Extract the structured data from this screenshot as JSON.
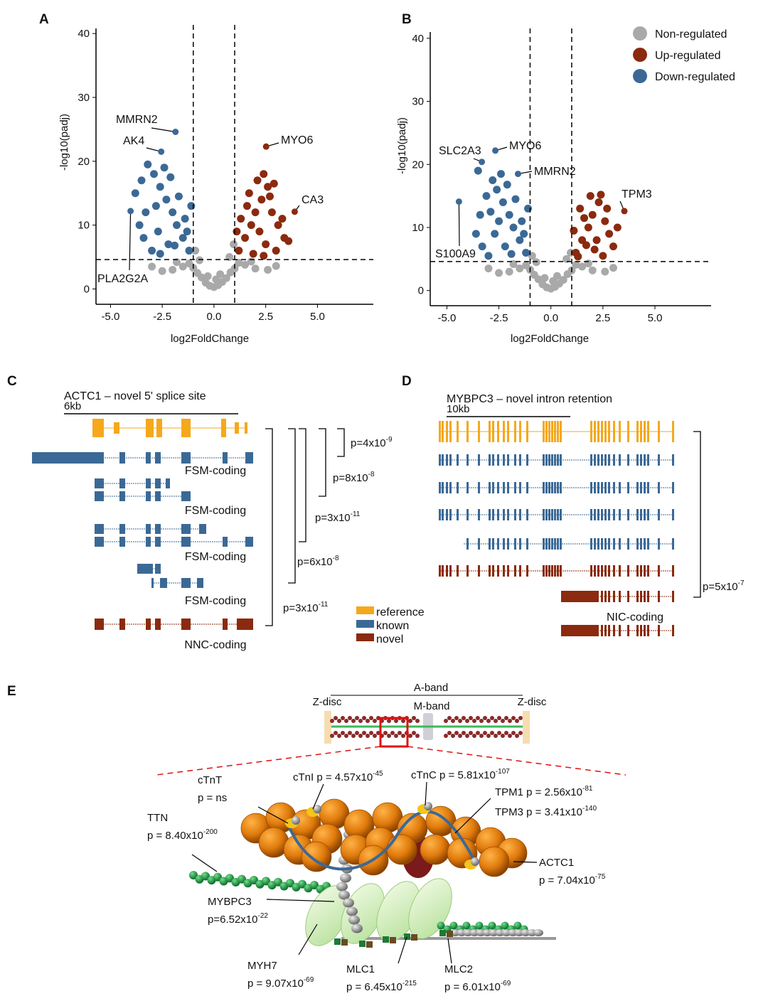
{
  "panel_labels": [
    "A",
    "B",
    "C",
    "D",
    "E"
  ],
  "chart_data": [
    {
      "type": "scatter",
      "xlabel": "log2FoldChange",
      "ylabel": "-log10(padj)",
      "xlim": [
        -5.7,
        7.7
      ],
      "ylim": [
        -2.4,
        40.8
      ],
      "xticks": [
        {
          "value": -5,
          "label": "-5.0"
        },
        {
          "value": -2.5,
          "label": "-2.5"
        },
        {
          "value": 0,
          "label": "0.0"
        },
        {
          "value": 2.5,
          "label": "2.5"
        },
        {
          "value": 5,
          "label": "5.0"
        }
      ],
      "yticks": [
        0,
        10,
        20,
        30,
        40
      ],
      "thresholds": {
        "x": [
          -1,
          1
        ],
        "y": 4.6
      },
      "series": [
        {
          "name": "Non-regulated",
          "color": "#a9a9a9",
          "x": [
            0,
            -0.2,
            0.2,
            -0.4,
            0.4,
            -0.6,
            0.6,
            -0.8,
            0.8,
            -1,
            1,
            -1.2,
            1.2,
            -1.5,
            1.5,
            -2,
            2,
            -2.5,
            2.6,
            -0.9,
            0.95,
            -0.7,
            0.75,
            -3,
            3,
            0.1,
            -0.3,
            0.3,
            -1.8,
            1.8
          ],
          "y": [
            0.3,
            0.5,
            0.6,
            1,
            1.1,
            1.8,
            1.7,
            2.5,
            2.6,
            3.3,
            3.2,
            4,
            4.1,
            3.5,
            3.8,
            3,
            3.2,
            2.8,
            3,
            6,
            7,
            4.5,
            5,
            3.5,
            3.6,
            1.5,
            2,
            2.3,
            4.2,
            4.3
          ]
        },
        {
          "name": "Up-regulated",
          "color": "#8b2a0e",
          "x": [
            1.2,
            1.5,
            1.8,
            2,
            2.3,
            2.6,
            2.4,
            2.1,
            1.6,
            1.3,
            2.8,
            3.1,
            3.4,
            3,
            2.5,
            1.9,
            2.2,
            2.7,
            3.3,
            1.1,
            2.9,
            1.7,
            3.6,
            2.4
          ],
          "y": [
            6,
            8,
            10,
            12,
            14,
            16,
            18,
            17,
            13,
            11,
            12,
            10,
            8,
            6,
            7,
            5.5,
            9,
            14.5,
            11,
            9,
            16.5,
            15,
            7.5,
            5.2
          ]
        },
        {
          "name": "Down-regulated",
          "color": "#3b6996",
          "x": [
            -1.2,
            -1.5,
            -1.8,
            -2,
            -2.3,
            -2.6,
            -2.9,
            -3.2,
            -3.5,
            -3.8,
            -3.3,
            -2.7,
            -2.2,
            -3,
            -1.4,
            -1.1,
            -2.4,
            -3.6,
            -2.8,
            -1.7,
            -2.1,
            -1.3,
            -2.6,
            -3.4,
            -1.9
          ],
          "y": [
            6,
            8,
            10,
            12,
            14,
            16,
            18,
            19.5,
            17,
            15,
            12,
            9,
            7,
            6,
            11,
            13,
            19,
            10,
            13,
            14.5,
            17.5,
            9,
            5.5,
            8,
            6.8
          ]
        }
      ],
      "annotations": [
        {
          "text": "MMRN2",
          "x": -1.86,
          "y": 24.6,
          "color": "#3b6996"
        },
        {
          "text": "AK4",
          "x": -2.55,
          "y": 21.5,
          "color": "#3b6996"
        },
        {
          "text": "MYO6",
          "x": 2.52,
          "y": 22.3,
          "color": "#8b2a0e"
        },
        {
          "text": "CA3",
          "x": 3.9,
          "y": 12.1,
          "color": "#8b2a0e"
        },
        {
          "text": "PLA2G2A",
          "x": -4.03,
          "y": 12.2,
          "color": "#3b6996"
        }
      ]
    },
    {
      "type": "scatter",
      "xlabel": "log2FoldChange",
      "ylabel": "-log10(padj)",
      "xlim": [
        -5.8,
        7.7
      ],
      "ylim": [
        -2.4,
        41
      ],
      "xticks": [
        {
          "value": -5,
          "label": "-5.0"
        },
        {
          "value": -2.5,
          "label": "-2.5"
        },
        {
          "value": 0,
          "label": "0.0"
        },
        {
          "value": 2.5,
          "label": "2.5"
        },
        {
          "value": 5,
          "label": "5.0"
        }
      ],
      "yticks": [
        0,
        10,
        20,
        30,
        40
      ],
      "thresholds": {
        "x": [
          -1,
          1
        ],
        "y": 4.6
      },
      "legend": "upper right",
      "series": [
        {
          "name": "Non-regulated",
          "color": "#a9a9a9",
          "x": [
            0,
            -0.2,
            0.2,
            -0.4,
            0.4,
            -0.6,
            0.6,
            -0.8,
            0.8,
            -1,
            1,
            -1.2,
            1.2,
            -1.5,
            1.5,
            -2,
            2,
            -2.5,
            2.6,
            -0.9,
            0.95,
            -0.7,
            0.75,
            -3,
            3,
            0.1,
            -0.3,
            0.3,
            -1.8,
            1.8
          ],
          "y": [
            0.3,
            0.5,
            0.6,
            1,
            1.1,
            1.8,
            1.7,
            2.5,
            2.6,
            3.3,
            3.2,
            4,
            4.1,
            3.5,
            3.8,
            3,
            3.2,
            2.8,
            3,
            5.5,
            6,
            4.5,
            5,
            3.5,
            3.6,
            1.5,
            2,
            2.3,
            4.2,
            4.3
          ]
        },
        {
          "name": "Up-regulated",
          "color": "#8b2a0e",
          "x": [
            1.2,
            1.5,
            1.8,
            2,
            2.3,
            1.9,
            1.4,
            2.6,
            2.8,
            3,
            2.5,
            1.6,
            2.2,
            1.1,
            2.7,
            3.2,
            1.3,
            2.1,
            2.4,
            1.7
          ],
          "y": [
            6,
            8,
            10,
            12,
            14,
            15,
            13,
            11,
            9,
            7,
            5.5,
            11.5,
            8,
            9.5,
            13,
            10,
            5.4,
            6.5,
            15.2,
            7.2
          ]
        },
        {
          "name": "Down-regulated",
          "color": "#3b6996",
          "x": [
            -1.2,
            -1.5,
            -1.8,
            -2,
            -2.3,
            -2.6,
            -2.8,
            -3.1,
            -3.4,
            -3.6,
            -3.3,
            -2.7,
            -2.2,
            -3,
            -1.4,
            -1.1,
            -2.4,
            -1.7,
            -2.1,
            -1.3,
            -3.5,
            -2.9,
            -1.9,
            -2.5
          ],
          "y": [
            6,
            8,
            10,
            12,
            14,
            16,
            17.5,
            15,
            12,
            9,
            7,
            9,
            7,
            5.5,
            11,
            13,
            18.5,
            14.5,
            16.8,
            9,
            19,
            12.5,
            5.8,
            11
          ]
        }
      ],
      "annotations": [
        {
          "text": "SLC2A3",
          "x": -3.32,
          "y": 20.4,
          "color": "#3b6996"
        },
        {
          "text": "MYO6",
          "x": -2.67,
          "y": 22.2,
          "color": "#3b6996"
        },
        {
          "text": "MMRN2",
          "x": -1.58,
          "y": 18.5,
          "color": "#3b6996"
        },
        {
          "text": "TPM3",
          "x": 3.53,
          "y": 12.6,
          "color": "#8b2a0e"
        },
        {
          "text": "S100A9",
          "x": -4.42,
          "y": 14.1,
          "color": "#3b6996"
        }
      ]
    }
  ],
  "panel_c": {
    "title": "ACTC1 – novel 5' splice site",
    "scale": "6kb",
    "isoform_labels": [
      "FSM-coding",
      "FSM-coding",
      "FSM-coding",
      "FSM-coding",
      "NNC-coding"
    ],
    "pvalues": [
      {
        "text": "p=4x10",
        "sup": "-9"
      },
      {
        "text": "p=8x10",
        "sup": "-8"
      },
      {
        "text": "p=3x10",
        "sup": "-11"
      },
      {
        "text": "p=6x10",
        "sup": "-8"
      },
      {
        "text": "p=3x10",
        "sup": "-11"
      }
    ],
    "legend": [
      {
        "name": "reference",
        "color": "#f5a81c"
      },
      {
        "name": "known",
        "color": "#3b6996"
      },
      {
        "name": "novel",
        "color": "#8b2a0e"
      }
    ]
  },
  "panel_d": {
    "title": "MYBPC3 – novel intron retention",
    "scale": "10kb",
    "isoform_labels": [
      "NIC-coding"
    ],
    "pvalues": [
      {
        "text": "p=5x10",
        "sup": "-7"
      }
    ]
  },
  "panel_e": {
    "sarcomere": [
      "A-band",
      "Z-disc",
      "M-band",
      "Z-disc"
    ],
    "labels": [
      {
        "line1": "cTnT",
        "line2": "p = ns"
      },
      {
        "line1": "cTnI p = 4.57x10",
        "sup": "-45"
      },
      {
        "line1": "cTnC p = 5.81x10",
        "sup": "-107"
      },
      {
        "line1": "TPM1 p = 2.56x10",
        "sup": "-81"
      },
      {
        "line1": "TPM3 p = 3.41x10",
        "sup": "-140"
      },
      {
        "line1": "TTN",
        "line2": "p = 8.40x10",
        "sup": "-200"
      },
      {
        "line1": "ACTC1",
        "line2": "p = 7.04x10",
        "sup": "-75"
      },
      {
        "line1": "MYBPC3",
        "line2": "p=6.52x10",
        "sup": "-22"
      },
      {
        "line1": "MYH7",
        "line2": "p = 9.07x10",
        "sup": "-69"
      },
      {
        "line1": "MLC1",
        "line2": "p = 6.45x10",
        "sup": "-215"
      },
      {
        "line1": "MLC2",
        "line2": "p = 6.01x10",
        "sup": "-69"
      }
    ]
  }
}
